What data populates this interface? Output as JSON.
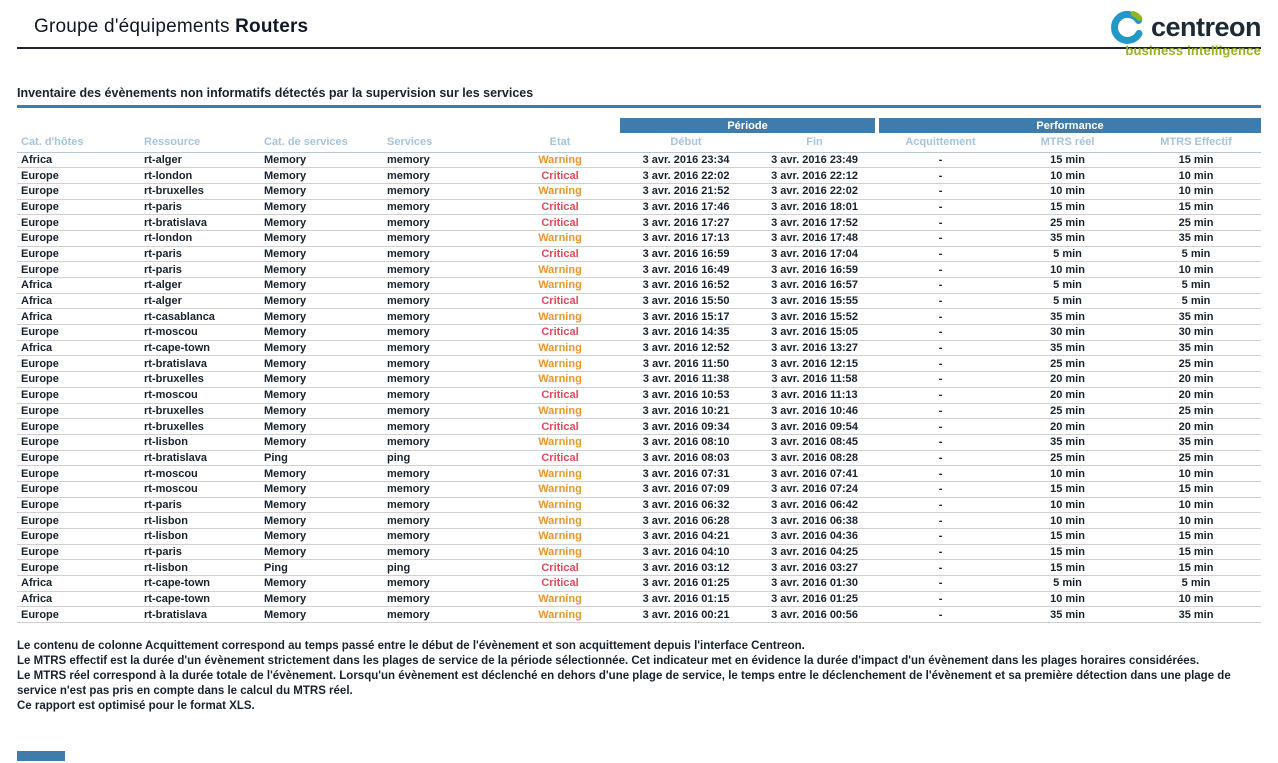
{
  "header": {
    "title_prefix": "Groupe d'équipements",
    "title_group": "Routers",
    "logo": {
      "brand": "centreon",
      "tagline": "business intelligence"
    }
  },
  "section": {
    "title": "Inventaire des évènements non informatifs détectés par la supervision sur les services"
  },
  "table": {
    "group_headers": {
      "periode": "Période",
      "performance": "Performance"
    },
    "columns": [
      "Cat. d'hôtes",
      "Ressource",
      "Cat. de services",
      "Services",
      "Etat",
      "Début",
      "Fin",
      "Acquittement",
      "MTRS réel",
      "MTRS Effectif"
    ],
    "rows": [
      [
        "Africa",
        "rt-alger",
        "Memory",
        "memory",
        "Warning",
        "3 avr. 2016 23:34",
        "3 avr. 2016 23:49",
        "-",
        "15 min",
        "15 min"
      ],
      [
        "Europe",
        "rt-london",
        "Memory",
        "memory",
        "Critical",
        "3 avr. 2016 22:02",
        "3 avr. 2016 22:12",
        "-",
        "10 min",
        "10 min"
      ],
      [
        "Europe",
        "rt-bruxelles",
        "Memory",
        "memory",
        "Warning",
        "3 avr. 2016 21:52",
        "3 avr. 2016 22:02",
        "-",
        "10 min",
        "10 min"
      ],
      [
        "Europe",
        "rt-paris",
        "Memory",
        "memory",
        "Critical",
        "3 avr. 2016 17:46",
        "3 avr. 2016 18:01",
        "-",
        "15 min",
        "15 min"
      ],
      [
        "Europe",
        "rt-bratislava",
        "Memory",
        "memory",
        "Critical",
        "3 avr. 2016 17:27",
        "3 avr. 2016 17:52",
        "-",
        "25 min",
        "25 min"
      ],
      [
        "Europe",
        "rt-london",
        "Memory",
        "memory",
        "Warning",
        "3 avr. 2016 17:13",
        "3 avr. 2016 17:48",
        "-",
        "35 min",
        "35 min"
      ],
      [
        "Europe",
        "rt-paris",
        "Memory",
        "memory",
        "Critical",
        "3 avr. 2016 16:59",
        "3 avr. 2016 17:04",
        "-",
        "5 min",
        "5 min"
      ],
      [
        "Europe",
        "rt-paris",
        "Memory",
        "memory",
        "Warning",
        "3 avr. 2016 16:49",
        "3 avr. 2016 16:59",
        "-",
        "10 min",
        "10 min"
      ],
      [
        "Africa",
        "rt-alger",
        "Memory",
        "memory",
        "Warning",
        "3 avr. 2016 16:52",
        "3 avr. 2016 16:57",
        "-",
        "5 min",
        "5 min"
      ],
      [
        "Africa",
        "rt-alger",
        "Memory",
        "memory",
        "Critical",
        "3 avr. 2016 15:50",
        "3 avr. 2016 15:55",
        "-",
        "5 min",
        "5 min"
      ],
      [
        "Africa",
        "rt-casablanca",
        "Memory",
        "memory",
        "Warning",
        "3 avr. 2016 15:17",
        "3 avr. 2016 15:52",
        "-",
        "35 min",
        "35 min"
      ],
      [
        "Europe",
        "rt-moscou",
        "Memory",
        "memory",
        "Critical",
        "3 avr. 2016 14:35",
        "3 avr. 2016 15:05",
        "-",
        "30 min",
        "30 min"
      ],
      [
        "Africa",
        "rt-cape-town",
        "Memory",
        "memory",
        "Warning",
        "3 avr. 2016 12:52",
        "3 avr. 2016 13:27",
        "-",
        "35 min",
        "35 min"
      ],
      [
        "Europe",
        "rt-bratislava",
        "Memory",
        "memory",
        "Warning",
        "3 avr. 2016 11:50",
        "3 avr. 2016 12:15",
        "-",
        "25 min",
        "25 min"
      ],
      [
        "Europe",
        "rt-bruxelles",
        "Memory",
        "memory",
        "Warning",
        "3 avr. 2016 11:38",
        "3 avr. 2016 11:58",
        "-",
        "20 min",
        "20 min"
      ],
      [
        "Europe",
        "rt-moscou",
        "Memory",
        "memory",
        "Critical",
        "3 avr. 2016 10:53",
        "3 avr. 2016 11:13",
        "-",
        "20 min",
        "20 min"
      ],
      [
        "Europe",
        "rt-bruxelles",
        "Memory",
        "memory",
        "Warning",
        "3 avr. 2016 10:21",
        "3 avr. 2016 10:46",
        "-",
        "25 min",
        "25 min"
      ],
      [
        "Europe",
        "rt-bruxelles",
        "Memory",
        "memory",
        "Critical",
        "3 avr. 2016 09:34",
        "3 avr. 2016 09:54",
        "-",
        "20 min",
        "20 min"
      ],
      [
        "Europe",
        "rt-lisbon",
        "Memory",
        "memory",
        "Warning",
        "3 avr. 2016 08:10",
        "3 avr. 2016 08:45",
        "-",
        "35 min",
        "35 min"
      ],
      [
        "Europe",
        "rt-bratislava",
        "Ping",
        "ping",
        "Critical",
        "3 avr. 2016 08:03",
        "3 avr. 2016 08:28",
        "-",
        "25 min",
        "25 min"
      ],
      [
        "Europe",
        "rt-moscou",
        "Memory",
        "memory",
        "Warning",
        "3 avr. 2016 07:31",
        "3 avr. 2016 07:41",
        "-",
        "10 min",
        "10 min"
      ],
      [
        "Europe",
        "rt-moscou",
        "Memory",
        "memory",
        "Warning",
        "3 avr. 2016 07:09",
        "3 avr. 2016 07:24",
        "-",
        "15 min",
        "15 min"
      ],
      [
        "Europe",
        "rt-paris",
        "Memory",
        "memory",
        "Warning",
        "3 avr. 2016 06:32",
        "3 avr. 2016 06:42",
        "-",
        "10 min",
        "10 min"
      ],
      [
        "Europe",
        "rt-lisbon",
        "Memory",
        "memory",
        "Warning",
        "3 avr. 2016 06:28",
        "3 avr. 2016 06:38",
        "-",
        "10 min",
        "10 min"
      ],
      [
        "Europe",
        "rt-lisbon",
        "Memory",
        "memory",
        "Warning",
        "3 avr. 2016 04:21",
        "3 avr. 2016 04:36",
        "-",
        "15 min",
        "15 min"
      ],
      [
        "Europe",
        "rt-paris",
        "Memory",
        "memory",
        "Warning",
        "3 avr. 2016 04:10",
        "3 avr. 2016 04:25",
        "-",
        "15 min",
        "15 min"
      ],
      [
        "Europe",
        "rt-lisbon",
        "Ping",
        "ping",
        "Critical",
        "3 avr. 2016 03:12",
        "3 avr. 2016 03:27",
        "-",
        "15 min",
        "15 min"
      ],
      [
        "Africa",
        "rt-cape-town",
        "Memory",
        "memory",
        "Critical",
        "3 avr. 2016 01:25",
        "3 avr. 2016 01:30",
        "-",
        "5 min",
        "5 min"
      ],
      [
        "Africa",
        "rt-cape-town",
        "Memory",
        "memory",
        "Warning",
        "3 avr. 2016 01:15",
        "3 avr. 2016 01:25",
        "-",
        "10 min",
        "10 min"
      ],
      [
        "Europe",
        "rt-bratislava",
        "Memory",
        "memory",
        "Warning",
        "3 avr. 2016 00:21",
        "3 avr. 2016 00:56",
        "-",
        "35 min",
        "35 min"
      ]
    ]
  },
  "footnotes": [
    "Le contenu de colonne Acquittement correspond au temps passé entre le début de l'évènement et son acquittement depuis l'interface Centreon.",
    "Le MTRS effectif est la durée d'un évènement strictement dans les plages de service de la période sélectionnée. Cet indicateur met en évidence la durée d'impact d'un évènement dans les plages horaires considérées.",
    "Le MTRS réel correspond à la durée totale de l'évènement. Lorsqu'un évènement est déclenché en dehors d'une plage de service, le temps entre le déclenchement de l'évènement et sa première détection dans une plage de service n'est pas pris en compte dans le calcul du MTRS réel.",
    "Ce rapport est optimisé pour le format XLS."
  ],
  "colors": {
    "accent_blue": "#3F7CAC",
    "warning": "#E8972E",
    "critical": "#E04B5A",
    "column_header_text": "#A6C4DA",
    "brand_blue": "#2398C8",
    "brand_green": "#8DB71E"
  }
}
